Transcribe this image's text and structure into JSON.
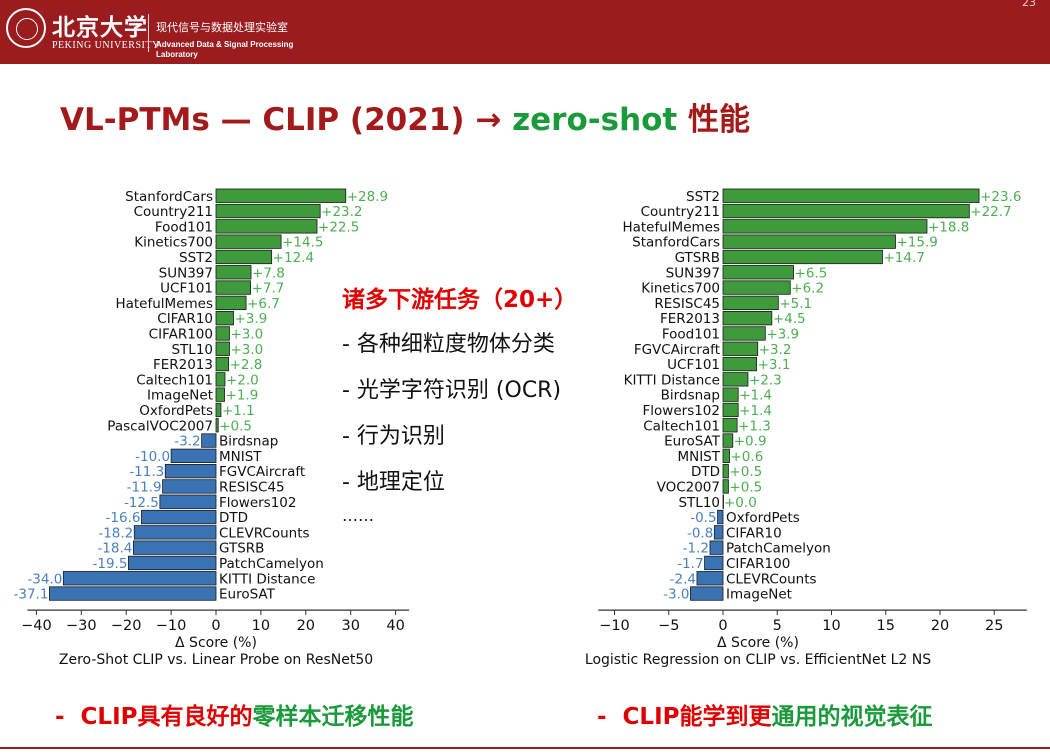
{
  "header": {
    "pku_cn": "北京大学",
    "pku_en": "PEKING UNIVERSITY",
    "lab_cn": "现代信号与数据处理实验室",
    "lab_en": "Advanced Data & Signal Processing Laboratory",
    "page_number": "23"
  },
  "title": {
    "part1": "VL-PTMs — CLIP (2021) → ",
    "part2": "zero-shot",
    "part3": " 性能"
  },
  "middle": {
    "heading": "诸多下游任务（20+）",
    "items": [
      "- 各种细粒度物体分类",
      "- 光学字符识别 (OCR)",
      "- 行为识别",
      "- 地理定位"
    ],
    "ellipsis": "……"
  },
  "bottom": {
    "left": {
      "dash": "-",
      "red": "CLIP具有良好的",
      "green": "零样本迁移性能"
    },
    "right": {
      "dash": "-",
      "red": "CLIP能学到更",
      "green": "通用的视觉表征"
    }
  },
  "colors": {
    "positive": "#3e9a3a",
    "negative": "#3a73b3",
    "pos_label": "#4caf50",
    "neg_label": "#4a80c0",
    "header": "#9b1c1f"
  },
  "chart_data": [
    {
      "type": "bar",
      "orientation": "horizontal",
      "xlabel": "Δ Score (%)",
      "caption": "Zero-Shot CLIP vs. Linear Probe on ResNet50",
      "xlim": [
        -42,
        43
      ],
      "xticks": [
        -40,
        -30,
        -20,
        -10,
        0,
        10,
        20,
        30,
        40
      ],
      "categories": [
        "StanfordCars",
        "Country211",
        "Food101",
        "Kinetics700",
        "SST2",
        "SUN397",
        "UCF101",
        "HatefulMemes",
        "CIFAR10",
        "CIFAR100",
        "STL10",
        "FER2013",
        "Caltech101",
        "ImageNet",
        "OxfordPets",
        "PascalVOC2007",
        "Birdsnap",
        "MNIST",
        "FGVCAircraft",
        "RESISC45",
        "Flowers102",
        "DTD",
        "CLEVRCounts",
        "GTSRB",
        "PatchCamelyon",
        "KITTI Distance",
        "EuroSAT"
      ],
      "values": [
        28.9,
        23.2,
        22.5,
        14.5,
        12.4,
        7.8,
        7.7,
        6.7,
        3.9,
        3.0,
        3.0,
        2.8,
        2.0,
        1.9,
        1.1,
        0.5,
        -3.2,
        -10.0,
        -11.3,
        -11.9,
        -12.5,
        -16.6,
        -18.2,
        -18.4,
        -19.5,
        -34.0,
        -37.1
      ],
      "value_labels": [
        "+28.9",
        "+23.2",
        "+22.5",
        "+14.5",
        "+12.4",
        "+7.8",
        "+7.7",
        "+6.7",
        "+3.9",
        "+3.0",
        "+3.0",
        "+2.8",
        "+2.0",
        "+1.9",
        "+1.1",
        "+0.5",
        "-3.2",
        "-10.0",
        "-11.3",
        "-11.9",
        "-12.5",
        "-16.6",
        "-18.2",
        "-18.4",
        "-19.5",
        "-34.0",
        "-37.1"
      ]
    },
    {
      "type": "bar",
      "orientation": "horizontal",
      "xlabel": "Δ Score (%)",
      "caption": "Logistic Regression on CLIP vs. EfficientNet L2 NS",
      "xlim": [
        -11.5,
        28
      ],
      "xticks": [
        -10,
        -5,
        0,
        5,
        10,
        15,
        20,
        25
      ],
      "categories": [
        "SST2",
        "Country211",
        "HatefulMemes",
        "StanfordCars",
        "GTSRB",
        "SUN397",
        "Kinetics700",
        "RESISC45",
        "FER2013",
        "Food101",
        "FGVCAircraft",
        "UCF101",
        "KITTI Distance",
        "Birdsnap",
        "Flowers102",
        "Caltech101",
        "EuroSAT",
        "MNIST",
        "DTD",
        "VOC2007",
        "STL10",
        "OxfordPets",
        "CIFAR10",
        "PatchCamelyon",
        "CIFAR100",
        "CLEVRCounts",
        "ImageNet"
      ],
      "values": [
        23.6,
        22.7,
        18.8,
        15.9,
        14.7,
        6.5,
        6.2,
        5.1,
        4.5,
        3.9,
        3.2,
        3.1,
        2.3,
        1.4,
        1.4,
        1.3,
        0.9,
        0.6,
        0.5,
        0.5,
        0.0,
        -0.5,
        -0.8,
        -1.2,
        -1.7,
        -2.4,
        -3.0
      ],
      "value_labels": [
        "+23.6",
        "+22.7",
        "+18.8",
        "+15.9",
        "+14.7",
        "+6.5",
        "+6.2",
        "+5.1",
        "+4.5",
        "+3.9",
        "+3.2",
        "+3.1",
        "+2.3",
        "+1.4",
        "+1.4",
        "+1.3",
        "+0.9",
        "+0.6",
        "+0.5",
        "+0.5",
        "+0.0",
        "-0.5",
        "-0.8",
        "-1.2",
        "-1.7",
        "-2.4",
        "-3.0"
      ]
    }
  ]
}
